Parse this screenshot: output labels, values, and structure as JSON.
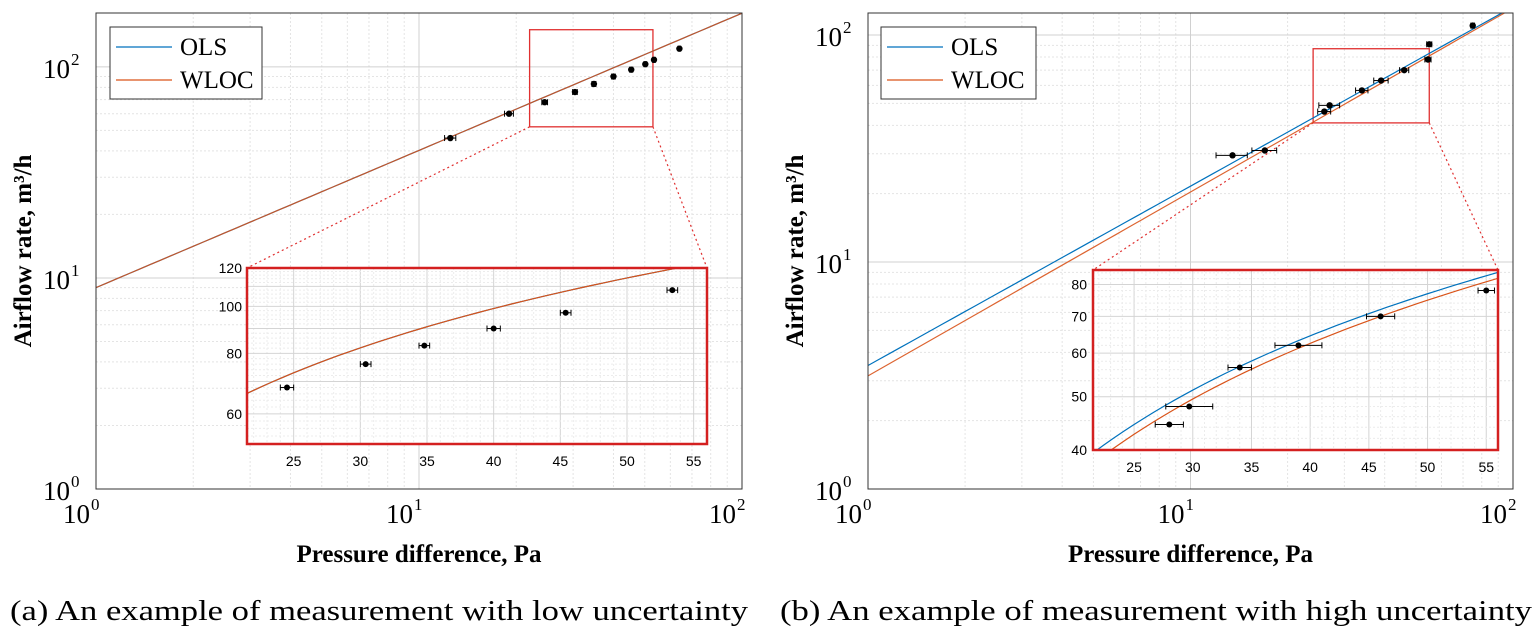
{
  "chart_data": [
    {
      "type": "line",
      "caption": "(a) An example of measurement with low uncertainty",
      "xlabel": "Pressure difference, Pa",
      "ylabel": "Airflow rate, m³/h",
      "xscale": "log",
      "yscale": "log",
      "xlim": [
        1,
        100
      ],
      "ylim": [
        1,
        180
      ],
      "xticks": [
        {
          "base": "10",
          "exp": "0"
        },
        {
          "base": "10",
          "exp": "1"
        },
        {
          "base": "10",
          "exp": "2"
        }
      ],
      "yticks": [
        {
          "base": "10",
          "exp": "0"
        },
        {
          "base": "10",
          "exp": "1"
        },
        {
          "base": "10",
          "exp": "2"
        }
      ],
      "grid": true,
      "legend": {
        "position": "top-left",
        "entries": [
          "OLS",
          "WLOC"
        ]
      },
      "colors": {
        "OLS": "#0072BD",
        "WLOC": "#D95319"
      },
      "series": [
        {
          "name": "OLS",
          "coef": 9.0,
          "exponent": 0.65,
          "x_range": [
            1,
            100
          ]
        },
        {
          "name": "WLOC",
          "coef": 9.0,
          "exponent": 0.65,
          "x_range": [
            1,
            100
          ]
        }
      ],
      "points": [
        {
          "x": 12.5,
          "y": 46,
          "xerr": 0.5
        },
        {
          "x": 19.0,
          "y": 60,
          "xerr": 0.6
        },
        {
          "x": 24.5,
          "y": 68,
          "xerr": 0.5
        },
        {
          "x": 30.4,
          "y": 76,
          "xerr": 0.5
        },
        {
          "x": 34.8,
          "y": 83,
          "xerr": 0.5
        },
        {
          "x": 40.0,
          "y": 90,
          "xerr": 0.5
        },
        {
          "x": 45.4,
          "y": 97,
          "xerr": 0.5
        },
        {
          "x": 50.2,
          "y": 103,
          "xerr": 0.5
        },
        {
          "x": 53.4,
          "y": 108,
          "xerr": 0.5
        },
        {
          "x": 64.0,
          "y": 122,
          "xerr": 0.6
        }
      ],
      "inset": {
        "xlim": [
          21.5,
          56
        ],
        "ylim": [
          52,
          120
        ],
        "xticks": [
          25,
          30,
          35,
          40,
          45,
          50,
          55
        ],
        "yticks": [
          60,
          80,
          100,
          120
        ],
        "x_range": [
          21.5,
          56
        ],
        "points": [
          {
            "x": 24.5,
            "y": 68,
            "xerr": 0.5
          },
          {
            "x": 30.4,
            "y": 76,
            "xerr": 0.4
          },
          {
            "x": 34.8,
            "y": 83,
            "xerr": 0.4
          },
          {
            "x": 40.0,
            "y": 90,
            "xerr": 0.5
          },
          {
            "x": 45.4,
            "y": 97,
            "xerr": 0.4
          },
          {
            "x": 53.4,
            "y": 108,
            "xerr": 0.4
          }
        ]
      },
      "zoom_box": {
        "xlim": [
          22,
          53
        ],
        "ylim": [
          52,
          150
        ]
      }
    },
    {
      "type": "line",
      "caption": "(b) An example of measurement with high uncertainty",
      "xlabel": "Pressure difference, Pa",
      "ylabel": "Airflow rate, m³/h",
      "xscale": "log",
      "yscale": "log",
      "xlim": [
        1,
        100
      ],
      "ylim": [
        1,
        125
      ],
      "xticks": [
        {
          "base": "10",
          "exp": "0"
        },
        {
          "base": "10",
          "exp": "1"
        },
        {
          "base": "10",
          "exp": "2"
        }
      ],
      "yticks": [
        {
          "base": "10",
          "exp": "0"
        },
        {
          "base": "10",
          "exp": "1"
        },
        {
          "base": "10",
          "exp": "2"
        }
      ],
      "grid": true,
      "legend": {
        "position": "top-left",
        "entries": [
          "OLS",
          "WLOC"
        ]
      },
      "colors": {
        "OLS": "#0072BD",
        "WLOC": "#D95319"
      },
      "series": [
        {
          "name": "OLS",
          "coef": 3.5,
          "exponent": 0.79,
          "x_range": [
            1,
            100
          ]
        },
        {
          "name": "WLOC",
          "coef": 3.15,
          "exponent": 0.81,
          "x_range": [
            1,
            100
          ]
        }
      ],
      "points": [
        {
          "x": 13.5,
          "y": 29.5,
          "xerr": 1.5
        },
        {
          "x": 17.0,
          "y": 31,
          "xerr": 1.5
        },
        {
          "x": 26.0,
          "y": 46,
          "xerr": 1.2
        },
        {
          "x": 27.0,
          "y": 49,
          "xerr": 2.0
        },
        {
          "x": 34.0,
          "y": 57,
          "xerr": 1.5
        },
        {
          "x": 39.0,
          "y": 63,
          "xerr": 2.0
        },
        {
          "x": 46.0,
          "y": 70,
          "xerr": 1.5
        },
        {
          "x": 54.5,
          "y": 78,
          "xerr": 1.2
        },
        {
          "x": 55.0,
          "y": 91,
          "xerr": 1.0
        },
        {
          "x": 75.0,
          "y": 110,
          "xerr": 1.0
        }
      ],
      "inset": {
        "xlim": [
          21.5,
          56
        ],
        "ylim": [
          40,
          85
        ],
        "xticks": [
          25,
          30,
          35,
          40,
          45,
          50,
          55
        ],
        "yticks": [
          40,
          50,
          60,
          70,
          80
        ],
        "x_range": [
          21.5,
          56
        ],
        "points": [
          {
            "x": 28.0,
            "y": 44.5,
            "xerr": 1.2
          },
          {
            "x": 29.7,
            "y": 48,
            "xerr": 2.0
          },
          {
            "x": 34.0,
            "y": 56.5,
            "xerr": 1.0
          },
          {
            "x": 39.0,
            "y": 62,
            "xerr": 2.0
          },
          {
            "x": 46.0,
            "y": 70,
            "xerr": 1.2
          },
          {
            "x": 55.0,
            "y": 78,
            "xerr": 0.7
          }
        ]
      },
      "zoom_box": {
        "xlim": [
          24,
          55
        ],
        "ylim": [
          41,
          87
        ]
      }
    }
  ]
}
